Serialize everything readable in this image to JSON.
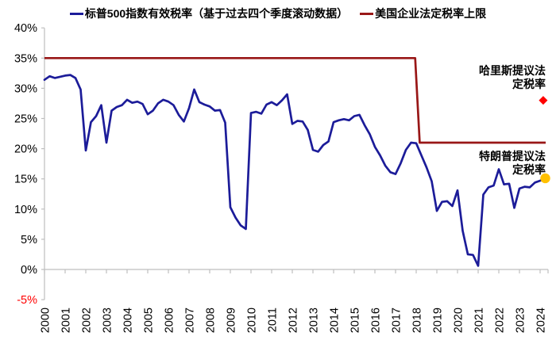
{
  "legend": {
    "series1_label": "标普500指数有效税率（基于过去四个季度滚动数据）",
    "series2_label": "美国企业法定税率上限"
  },
  "annotations": {
    "harris": {
      "line1": "哈里斯提议法",
      "line2": "定税率",
      "value_pct": 28
    },
    "trump": {
      "line1": "特朗普提议法",
      "line2": "定税率",
      "value_pct": 15
    }
  },
  "colors": {
    "sp500_line": "#1C1C99",
    "statutory_line": "#991717",
    "harris_marker": "#FF0000",
    "trump_marker": "#FFC000",
    "axis": "#BFBFBF",
    "tick_label": "#000000",
    "negative_tick_label": "#FF0000",
    "background": "#FFFFFF"
  },
  "chart_data": {
    "type": "line",
    "title": "",
    "xlabel": "",
    "ylabel": "",
    "grid": false,
    "legend_position": "top",
    "ylim": [
      -5,
      40
    ],
    "y_ticks": [
      "40%",
      "35%",
      "30%",
      "25%",
      "20%",
      "15%",
      "10%",
      "5%",
      "0%",
      "-5%"
    ],
    "x_tick_labels": [
      "2000",
      "2001",
      "2002",
      "2003",
      "2004",
      "2005",
      "2006",
      "2007",
      "2008",
      "2009",
      "2010",
      "2011",
      "2012",
      "2013",
      "2014",
      "2015",
      "2016",
      "2017",
      "2018",
      "2019",
      "2020",
      "2021",
      "2022",
      "2023",
      "2024"
    ],
    "x_start_year": 2000,
    "x_step_years": 0.25,
    "series": [
      {
        "name": "标普500指数有效税率（基于过去四个季度滚动数据）",
        "unit": "%",
        "frequency": "quarterly",
        "values": [
          31.4,
          32.0,
          31.7,
          31.9,
          32.1,
          32.2,
          31.7,
          29.8,
          19.7,
          24.4,
          25.4,
          27.2,
          21.0,
          26.3,
          26.9,
          27.2,
          28.1,
          27.6,
          27.8,
          27.4,
          25.7,
          26.3,
          27.5,
          28.1,
          27.8,
          27.2,
          25.6,
          24.5,
          26.7,
          29.8,
          27.7,
          27.3,
          27.0,
          26.3,
          26.4,
          24.3,
          10.3,
          8.6,
          7.3,
          6.7,
          25.9,
          26.1,
          25.8,
          27.3,
          27.7,
          27.2,
          28.0,
          29.0,
          24.1,
          24.6,
          24.5,
          23.1,
          19.8,
          19.5,
          20.6,
          21.2,
          24.4,
          24.7,
          24.9,
          24.7,
          25.4,
          25.6,
          23.9,
          22.4,
          20.3,
          18.9,
          17.2,
          16.1,
          15.8,
          17.6,
          19.8,
          21.0,
          20.9,
          18.9,
          16.9,
          14.6,
          9.7,
          11.2,
          11.3,
          10.5,
          13.1,
          6.4,
          2.5,
          2.4,
          0.6,
          12.4,
          13.6,
          13.9,
          16.6,
          14.1,
          14.2,
          10.2,
          13.4,
          13.7,
          13.6,
          14.4,
          14.7,
          15.1
        ]
      },
      {
        "name": "美国企业法定税率上限",
        "unit": "%",
        "points": [
          [
            2000.0,
            35
          ],
          [
            2017.95,
            35
          ],
          [
            2018.17,
            21
          ],
          [
            2024.27,
            21
          ]
        ]
      }
    ],
    "markers": [
      {
        "label": "哈里斯提议法定税率",
        "t": 2024.15,
        "value": 28.0,
        "shape": "diamond"
      },
      {
        "label": "特朗普提议法定税率",
        "t": 2024.25,
        "value": 15.1,
        "shape": "circle"
      }
    ]
  }
}
